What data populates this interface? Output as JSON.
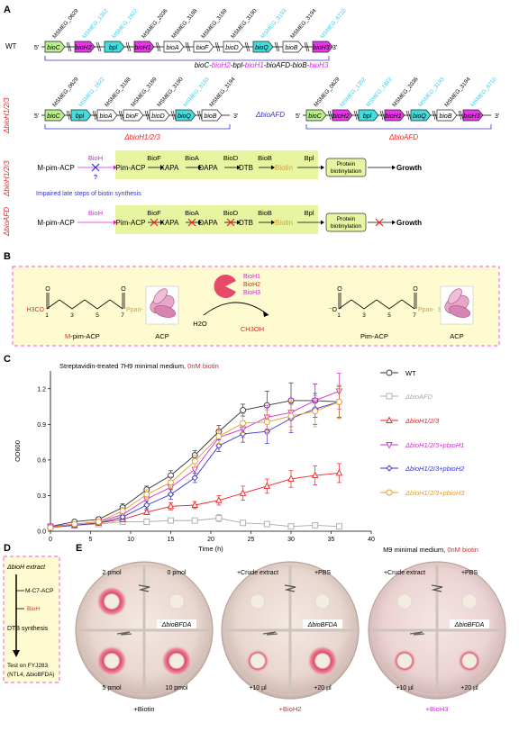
{
  "panels": {
    "A": "A",
    "B": "B",
    "C": "C",
    "D": "D",
    "E": "E"
  },
  "colors": {
    "green_gene": "#b8f08c",
    "magenta_gene": "#ee33ee",
    "cyan_gene": "#44dddd",
    "cyan_text": "#33ccee",
    "magenta_text": "#dd22dd",
    "red": "#ee2222",
    "blue": "#3333cc",
    "orange": "#ee9922",
    "highlight": "#e8f5a0",
    "panelB_bg": "#fffbd0",
    "border_magenta": "#ee55ee"
  },
  "panelA": {
    "wt_label": "WT",
    "five": "5'",
    "three": "3'",
    "wt_loci": [
      {
        "text": "MSMEG_0629",
        "color": "black"
      },
      {
        "text": "MSMEG_1352",
        "color": "cyan"
      },
      {
        "text": "MSMEG_1822",
        "color": "cyan"
      },
      {
        "text": "MSMEG_2036",
        "color": "black"
      },
      {
        "text": "MSMEG_3188",
        "color": "black"
      },
      {
        "text": "MSMEG_3189",
        "color": "black"
      },
      {
        "text": "MSMEG_3190",
        "color": "black"
      },
      {
        "text": "MSMEG_3193",
        "color": "cyan"
      },
      {
        "text": "MSMEG_3194",
        "color": "black"
      },
      {
        "text": "MSMEG_6710",
        "color": "cyan"
      }
    ],
    "wt_genes": [
      {
        "text": "bioC",
        "fill": "green"
      },
      {
        "text": "bioH2",
        "fill": "magenta"
      },
      {
        "text": "bpl",
        "fill": "cyan"
      },
      {
        "text": "bioH1",
        "fill": "magenta"
      },
      {
        "text": "bioA",
        "fill": "white"
      },
      {
        "text": "bioF",
        "fill": "white"
      },
      {
        "text": "bioD",
        "fill": "white"
      },
      {
        "text": "bioQ",
        "fill": "cyan"
      },
      {
        "text": "bioB",
        "fill": "white"
      },
      {
        "text": "bioH3",
        "fill": "magenta"
      }
    ],
    "wt_caption": [
      {
        "text": "bioC-",
        "color": "black"
      },
      {
        "text": "bioH2",
        "color": "magenta"
      },
      {
        "text": "-bpl-",
        "color": "black"
      },
      {
        "text": "bioH1",
        "color": "magenta"
      },
      {
        "text": "-bioAFD-bioB-",
        "color": "black"
      },
      {
        "text": "bioH3",
        "color": "magenta"
      }
    ],
    "dh_label": "ΔbioH1/2/3",
    "dh_loci": [
      {
        "text": "MSMEG_0629",
        "color": "black"
      },
      {
        "text": "MSMEG_1822",
        "color": "cyan"
      },
      {
        "text": "MSMEG_3188",
        "color": "black"
      },
      {
        "text": "MSMEG_3189",
        "color": "black"
      },
      {
        "text": "MSMEG_3190",
        "color": "black"
      },
      {
        "text": "MSMEG_3193",
        "color": "cyan"
      },
      {
        "text": "MSMEG_3194",
        "color": "black"
      }
    ],
    "dh_genes": [
      {
        "text": "bioC",
        "fill": "green"
      },
      {
        "text": "bpl",
        "fill": "cyan"
      },
      {
        "text": "bioA",
        "fill": "white"
      },
      {
        "text": "bioF",
        "fill": "white"
      },
      {
        "text": "bioD",
        "fill": "white"
      },
      {
        "text": "bioQ",
        "fill": "cyan"
      },
      {
        "text": "bioB",
        "fill": "white"
      }
    ],
    "dh_caption": "ΔbioH1/2/3",
    "dafd_label": "ΔbioAFD",
    "dafd_loci": [
      {
        "text": "MSMEG_0629",
        "color": "black"
      },
      {
        "text": "MSMEG_1352",
        "color": "cyan"
      },
      {
        "text": "MSMEG_1822",
        "color": "cyan"
      },
      {
        "text": "MSMEG_2036",
        "color": "black"
      },
      {
        "text": "MSMEG_3193",
        "color": "cyan"
      },
      {
        "text": "MSMEG_3194",
        "color": "black"
      },
      {
        "text": "MSMEG_6710",
        "color": "cyan"
      }
    ],
    "dafd_genes": [
      {
        "text": "bioC",
        "fill": "green"
      },
      {
        "text": "bioH2",
        "fill": "magenta"
      },
      {
        "text": "bpl",
        "fill": "cyan"
      },
      {
        "text": "bioH1",
        "fill": "magenta"
      },
      {
        "text": "bioQ",
        "fill": "cyan"
      },
      {
        "text": "bioB",
        "fill": "white"
      },
      {
        "text": "bioH3",
        "fill": "magenta"
      }
    ],
    "dafd_caption": "ΔbioAFD",
    "path1_side": "ΔbioH1/2/3",
    "path2_side": "ΔbioAFD",
    "enzymes": [
      "BioH",
      "BioF",
      "BioA",
      "BioD",
      "BioB",
      "Bpl"
    ],
    "intermediates": [
      "M-pim-ACP",
      "Pim-ACP",
      "KAPA",
      "DAPA",
      "DTB",
      "Biotin"
    ],
    "protein_box": [
      "Protein",
      "biotinylation"
    ],
    "growth": "Growth",
    "question": "?",
    "impaired": "Impaired late steps of biotin synthesis"
  },
  "panelB": {
    "enzymes": [
      "BioH1",
      "BioH2",
      "BioH3"
    ],
    "h3co": "H3CO",
    "ppan": "Ppan-",
    "s": "S",
    "o": "O",
    "o_minus": "⁻O",
    "carbon_numbers": [
      "1",
      "3",
      "5",
      "7"
    ],
    "left_label_m": "M",
    "left_label_rest": "-pim-ACP",
    "acp": "ACP",
    "pim_acp": "Pim-ACP",
    "h2o": "H2O",
    "ch3oh": "CH3OH"
  },
  "panelC": {
    "annotation_black": "Streptavidin-treated 7H9 minimal medium, ",
    "annotation_red": "0nM biotin"
  },
  "chart_data": {
    "type": "line",
    "xlabel": "Time (h)",
    "ylabel": "OD600",
    "xlim": [
      0,
      40
    ],
    "ylim": [
      0,
      1.35
    ],
    "xticks": [
      0,
      5,
      10,
      15,
      20,
      25,
      30,
      35,
      40
    ],
    "yticks": [
      0,
      0.3,
      0.6,
      0.9,
      1.2
    ],
    "ytick_labels": [
      "0.0",
      "0.3",
      "0.6",
      "0.9",
      "1.2"
    ],
    "legend_position": "right",
    "series": [
      {
        "name": "WT",
        "color": "#333333",
        "marker": "circle",
        "x": [
          0,
          3,
          6,
          9,
          12,
          15,
          18,
          21,
          24,
          27,
          30,
          33,
          36
        ],
        "y": [
          0.04,
          0.08,
          0.1,
          0.2,
          0.35,
          0.47,
          0.64,
          0.84,
          1.02,
          1.06,
          1.1,
          1.1,
          1.09
        ],
        "err": [
          0.01,
          0.01,
          0.02,
          0.03,
          0.03,
          0.04,
          0.04,
          0.05,
          0.05,
          0.12,
          0.15,
          0.14,
          0.13
        ]
      },
      {
        "name": "ΔbioAFD",
        "color": "#aaaaaa",
        "marker": "square",
        "x": [
          0,
          3,
          6,
          9,
          12,
          15,
          18,
          21,
          24,
          27,
          30,
          33,
          36
        ],
        "y": [
          0.04,
          0.05,
          0.06,
          0.08,
          0.08,
          0.09,
          0.09,
          0.11,
          0.07,
          0.06,
          0.04,
          0.05,
          0.04
        ],
        "err": [
          0.01,
          0.01,
          0.01,
          0.02,
          0.02,
          0.02,
          0.02,
          0.03,
          0.02,
          0.02,
          0.01,
          0.02,
          0.01
        ]
      },
      {
        "name": "ΔbioH1/2/3",
        "color": "#ee2222",
        "marker": "triangle-up",
        "x": [
          0,
          3,
          6,
          9,
          12,
          15,
          18,
          21,
          24,
          27,
          30,
          33,
          36
        ],
        "y": [
          0.04,
          0.05,
          0.07,
          0.1,
          0.16,
          0.21,
          0.22,
          0.26,
          0.32,
          0.38,
          0.44,
          0.47,
          0.49
        ],
        "err": [
          0.01,
          0.01,
          0.01,
          0.02,
          0.02,
          0.03,
          0.03,
          0.04,
          0.06,
          0.06,
          0.07,
          0.08,
          0.08
        ]
      },
      {
        "name": "ΔbioH1/2/3+pbioH1",
        "color": "#cc33cc",
        "marker": "triangle-down",
        "x": [
          0,
          3,
          6,
          9,
          12,
          15,
          18,
          21,
          24,
          27,
          30,
          33,
          36
        ],
        "y": [
          0.04,
          0.06,
          0.08,
          0.14,
          0.27,
          0.37,
          0.52,
          0.79,
          0.86,
          0.96,
          1.0,
          1.1,
          1.18
        ],
        "err": [
          0.01,
          0.01,
          0.02,
          0.03,
          0.04,
          0.05,
          0.06,
          0.06,
          0.07,
          0.1,
          0.12,
          0.14,
          0.15
        ]
      },
      {
        "name": "ΔbioH1/2/3+pbioH2",
        "color": "#3333cc",
        "marker": "diamond",
        "x": [
          0,
          3,
          6,
          9,
          12,
          15,
          18,
          21,
          24,
          27,
          30,
          33,
          36
        ],
        "y": [
          0.03,
          0.05,
          0.07,
          0.12,
          0.22,
          0.31,
          0.45,
          0.72,
          0.82,
          0.84,
          0.95,
          1.03,
          1.09
        ],
        "err": [
          0.01,
          0.01,
          0.01,
          0.02,
          0.03,
          0.04,
          0.04,
          0.05,
          0.07,
          0.1,
          0.12,
          0.13,
          0.14
        ]
      },
      {
        "name": "ΔbioH1/2/3+pbioH3",
        "color": "#ee9922",
        "marker": "circle",
        "x": [
          0,
          3,
          6,
          9,
          12,
          15,
          18,
          21,
          24,
          27,
          30,
          33,
          36
        ],
        "y": [
          0.03,
          0.06,
          0.08,
          0.17,
          0.31,
          0.41,
          0.59,
          0.8,
          0.91,
          0.92,
          0.97,
          1.01,
          1.09
        ],
        "err": [
          0.01,
          0.01,
          0.02,
          0.03,
          0.04,
          0.05,
          0.05,
          0.06,
          0.08,
          0.1,
          0.12,
          0.13,
          0.14
        ]
      }
    ]
  },
  "panelD": {
    "extract": "ΔbioH extract",
    "substrate": "M-C7-ACP",
    "enzyme": "BioH",
    "dtb": "DTB synthesis",
    "test1": "Test on FYJ283",
    "test2": "(NTL4, ΔbioBFDA)"
  },
  "panelE": {
    "medium_black": "M9 minimal medium, ",
    "medium_red": "0nM biotin",
    "strain": "ΔbioBFDA",
    "plate1": {
      "tl": "2 pmol",
      "tr": "0 pmol",
      "bl": "5 pmol",
      "br": "10 pmol",
      "bottom": "+Biotin"
    },
    "plate2": {
      "tl": "+Crude extract",
      "tr": "+PBS",
      "bl": "+10 µl",
      "br": "+20 µl",
      "bottom": "+BioH2"
    },
    "plate3": {
      "tl": "+Crude extract",
      "tr": "+PBS",
      "bl": "+10 µl",
      "br": "+20 µl",
      "bottom": "+BioH3"
    }
  }
}
